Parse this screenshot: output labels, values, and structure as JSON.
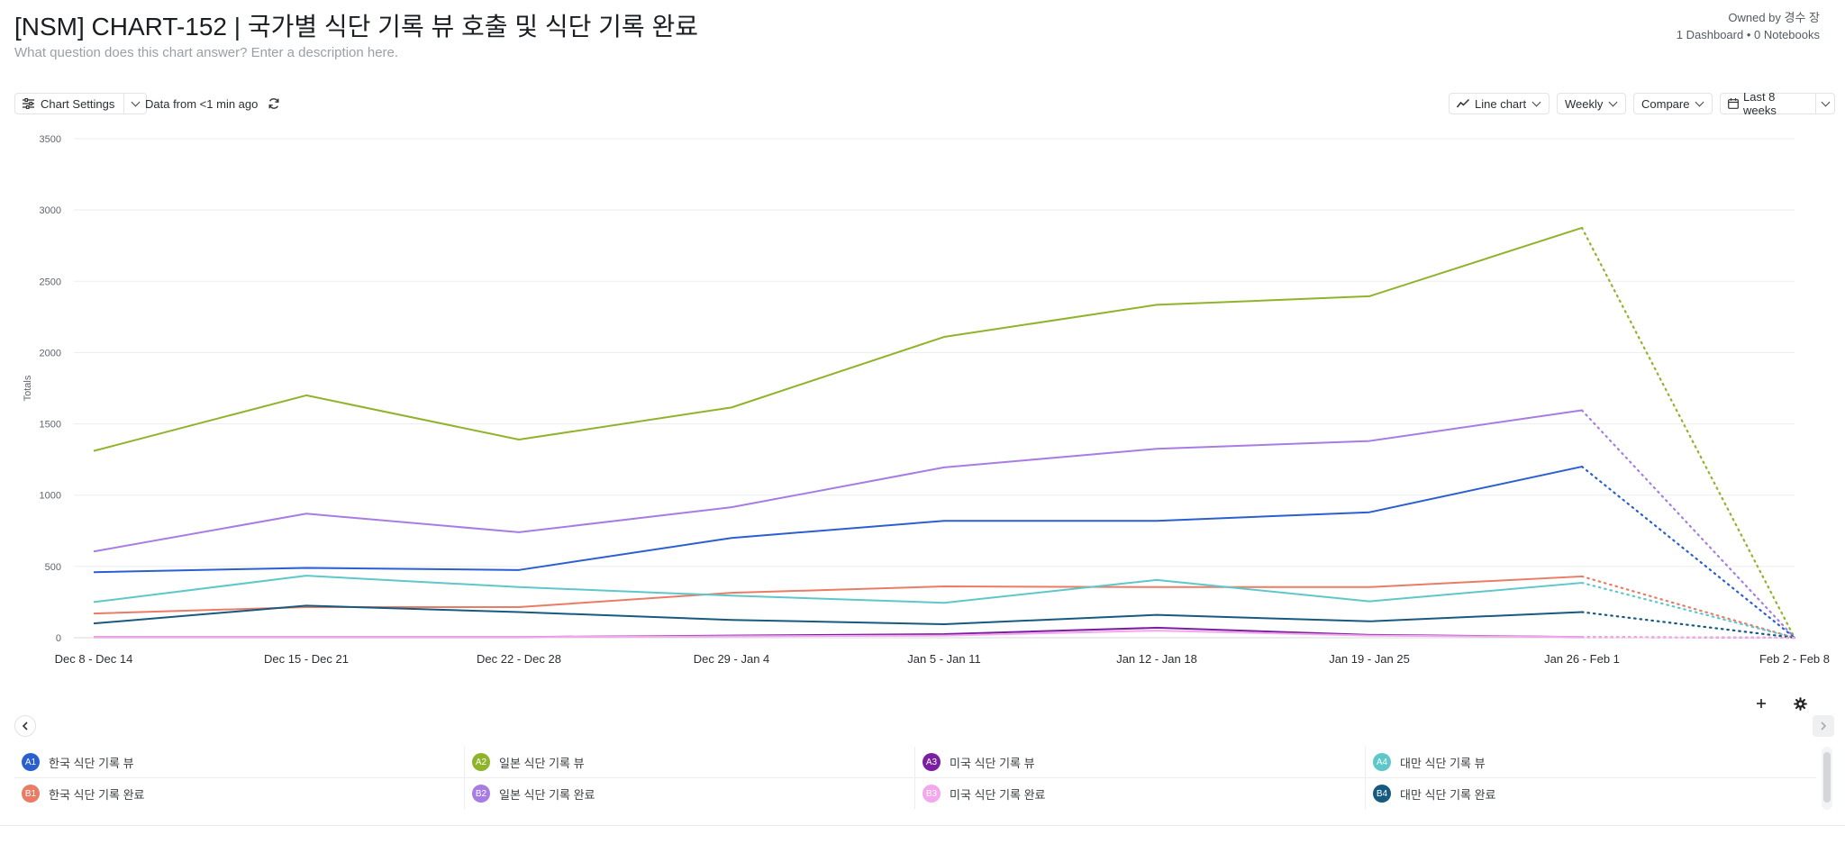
{
  "header": {
    "title": "[NSM] CHART-152 | 국가별 식단 기록 뷰 호출 및 식단 기록 완료",
    "description_placeholder": "What question does this chart answer? Enter a description here.",
    "owner": "Owned by 경수 장",
    "usage": "1 Dashboard • 0 Notebooks"
  },
  "toolbar": {
    "chart_settings": "Chart Settings",
    "data_freshness": "Data from <1 min ago",
    "chart_type": "Line chart",
    "interval": "Weekly",
    "compare": "Compare",
    "date_range": "Last 8 weeks"
  },
  "colors": {
    "A1": "#2b5fd0",
    "A2": "#8fb42c",
    "A3": "#7b1fa2",
    "A4": "#5ec7c9",
    "B1": "#ea7c66",
    "B2": "#a77ce3",
    "B3": "#f4a7ec",
    "B4": "#165a80"
  },
  "chart_data": {
    "type": "line",
    "ylabel": "Totals",
    "xlabel": "",
    "ylim": [
      0,
      3500
    ],
    "yticks": [
      0,
      500,
      1000,
      1500,
      2000,
      2500,
      3000,
      3500
    ],
    "categories": [
      "Dec 8 - Dec 14",
      "Dec 15 - Dec 21",
      "Dec 22 - Dec 28",
      "Dec 29 - Jan 4",
      "Jan 5 - Jan 11",
      "Jan 12 - Jan 18",
      "Jan 19 - Jan 25",
      "Jan 26 - Feb 1",
      "Feb 2 - Feb 8"
    ],
    "partial_last_period": true,
    "grid": true,
    "series": [
      {
        "id": "A2",
        "name": "일본 식단 기록 뷰",
        "values": [
          1310,
          1700,
          1390,
          1615,
          2110,
          2335,
          2395,
          2875,
          0
        ]
      },
      {
        "id": "B2",
        "name": "일본 식단 기록 완료",
        "values": [
          605,
          870,
          740,
          915,
          1195,
          1325,
          1380,
          1595,
          0
        ]
      },
      {
        "id": "A1",
        "name": "한국 식단 기록 뷰",
        "values": [
          460,
          490,
          475,
          700,
          820,
          820,
          880,
          1200,
          0
        ]
      },
      {
        "id": "B1",
        "name": "한국 식단 기록 완료",
        "values": [
          170,
          215,
          215,
          315,
          360,
          355,
          355,
          430,
          0
        ]
      },
      {
        "id": "A4",
        "name": "대만 식단 기록 뷰",
        "values": [
          250,
          435,
          355,
          295,
          245,
          405,
          255,
          385,
          0
        ]
      },
      {
        "id": "B4",
        "name": "대만 식단 기록 완료",
        "values": [
          100,
          225,
          180,
          125,
          95,
          160,
          115,
          180,
          0
        ]
      },
      {
        "id": "A3",
        "name": "미국 식단 기록 뷰",
        "values": [
          5,
          5,
          5,
          15,
          25,
          70,
          20,
          5,
          0
        ]
      },
      {
        "id": "B3",
        "name": "미국 식단 기록 완료",
        "values": [
          5,
          5,
          5,
          10,
          15,
          50,
          15,
          5,
          0
        ]
      }
    ]
  },
  "legend": {
    "row1": [
      {
        "id": "A1",
        "label": "한국 식단 기록 뷰"
      },
      {
        "id": "A2",
        "label": "일본 식단 기록 뷰"
      },
      {
        "id": "A3",
        "label": "미국 식단 기록 뷰"
      },
      {
        "id": "A4",
        "label": "대만 식단 기록 뷰"
      }
    ],
    "row2": [
      {
        "id": "B1",
        "label": "한국 식단 기록 완료"
      },
      {
        "id": "B2",
        "label": "일본 식단 기록 완료"
      },
      {
        "id": "B3",
        "label": "미국 식단 기록 완료"
      },
      {
        "id": "B4",
        "label": "대만 식단 기록 완료"
      }
    ]
  }
}
